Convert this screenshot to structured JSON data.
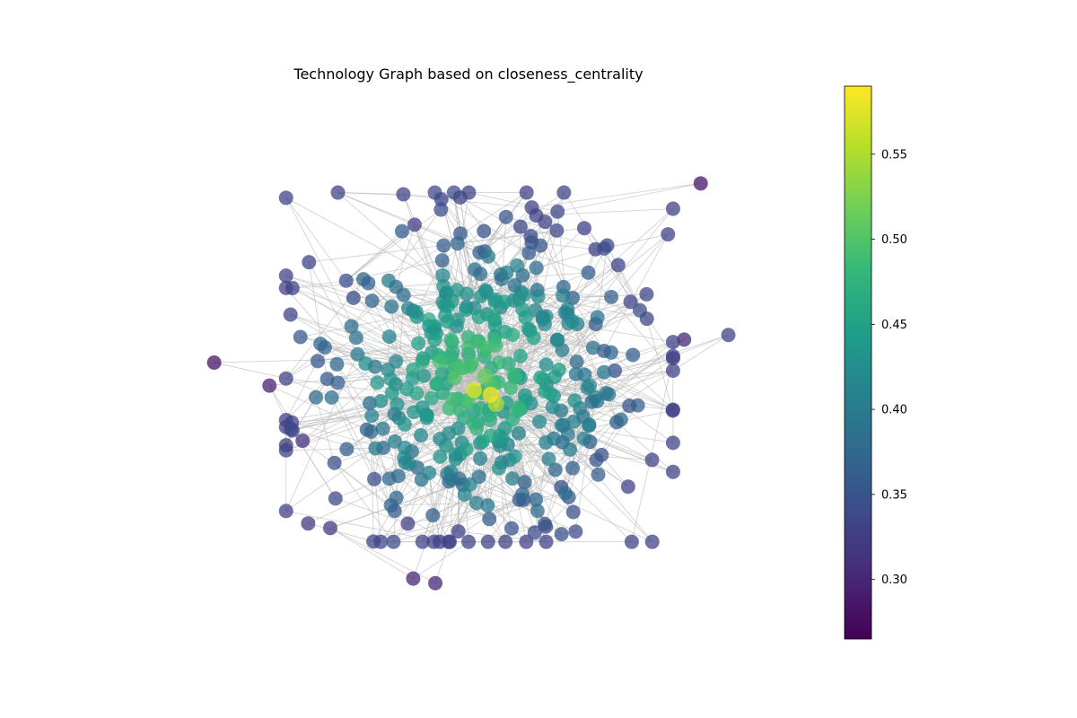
{
  "chart_data": {
    "type": "scatter",
    "title": "Technology Graph based on closeness_centrality",
    "xlabel": "",
    "ylabel": "",
    "axes_visible": false,
    "grid": false,
    "colormap": "viridis",
    "node_alpha": 0.75,
    "edge_color": "#bbbbbb",
    "colorbar": {
      "placement": "right",
      "range": [
        0.265,
        0.59
      ],
      "ticks": [
        0.3,
        0.35,
        0.4,
        0.45,
        0.5,
        0.55
      ],
      "tick_labels": [
        "0.30",
        "0.35",
        "0.40",
        "0.45",
        "0.50",
        "0.55"
      ]
    },
    "colorbar_stops": [
      "#440154",
      "#482878",
      "#3e4989",
      "#31688e",
      "#26828e",
      "#1f9e89",
      "#35b779",
      "#6ece58",
      "#b5de2b",
      "#fde725"
    ],
    "outlier_nodes": [
      {
        "x": 0.92,
        "y": 0.89,
        "value": 0.285
      },
      {
        "x": 0.04,
        "y": 0.5,
        "value": 0.283
      },
      {
        "x": 0.14,
        "y": 0.45,
        "value": 0.295
      },
      {
        "x": 0.97,
        "y": 0.56,
        "value": 0.33
      },
      {
        "x": 0.4,
        "y": 0.03,
        "value": 0.3
      },
      {
        "x": 0.44,
        "y": 0.02,
        "value": 0.3
      },
      {
        "x": 0.21,
        "y": 0.15,
        "value": 0.32
      },
      {
        "x": 0.25,
        "y": 0.14,
        "value": 0.32
      },
      {
        "x": 0.89,
        "y": 0.55,
        "value": 0.3
      },
      {
        "x": 0.17,
        "y": 0.32,
        "value": 0.32
      },
      {
        "x": 0.2,
        "y": 0.33,
        "value": 0.31
      }
    ],
    "hub_nodes": [
      {
        "x": 0.51,
        "y": 0.44,
        "value": 0.575
      },
      {
        "x": 0.54,
        "y": 0.43,
        "value": 0.59
      },
      {
        "x": 0.55,
        "y": 0.41,
        "value": 0.555
      },
      {
        "x": 0.53,
        "y": 0.47,
        "value": 0.51
      },
      {
        "x": 0.59,
        "y": 0.4,
        "value": 0.48
      },
      {
        "x": 0.49,
        "y": 0.49,
        "value": 0.49
      }
    ],
    "node_count_estimate": 420
  }
}
